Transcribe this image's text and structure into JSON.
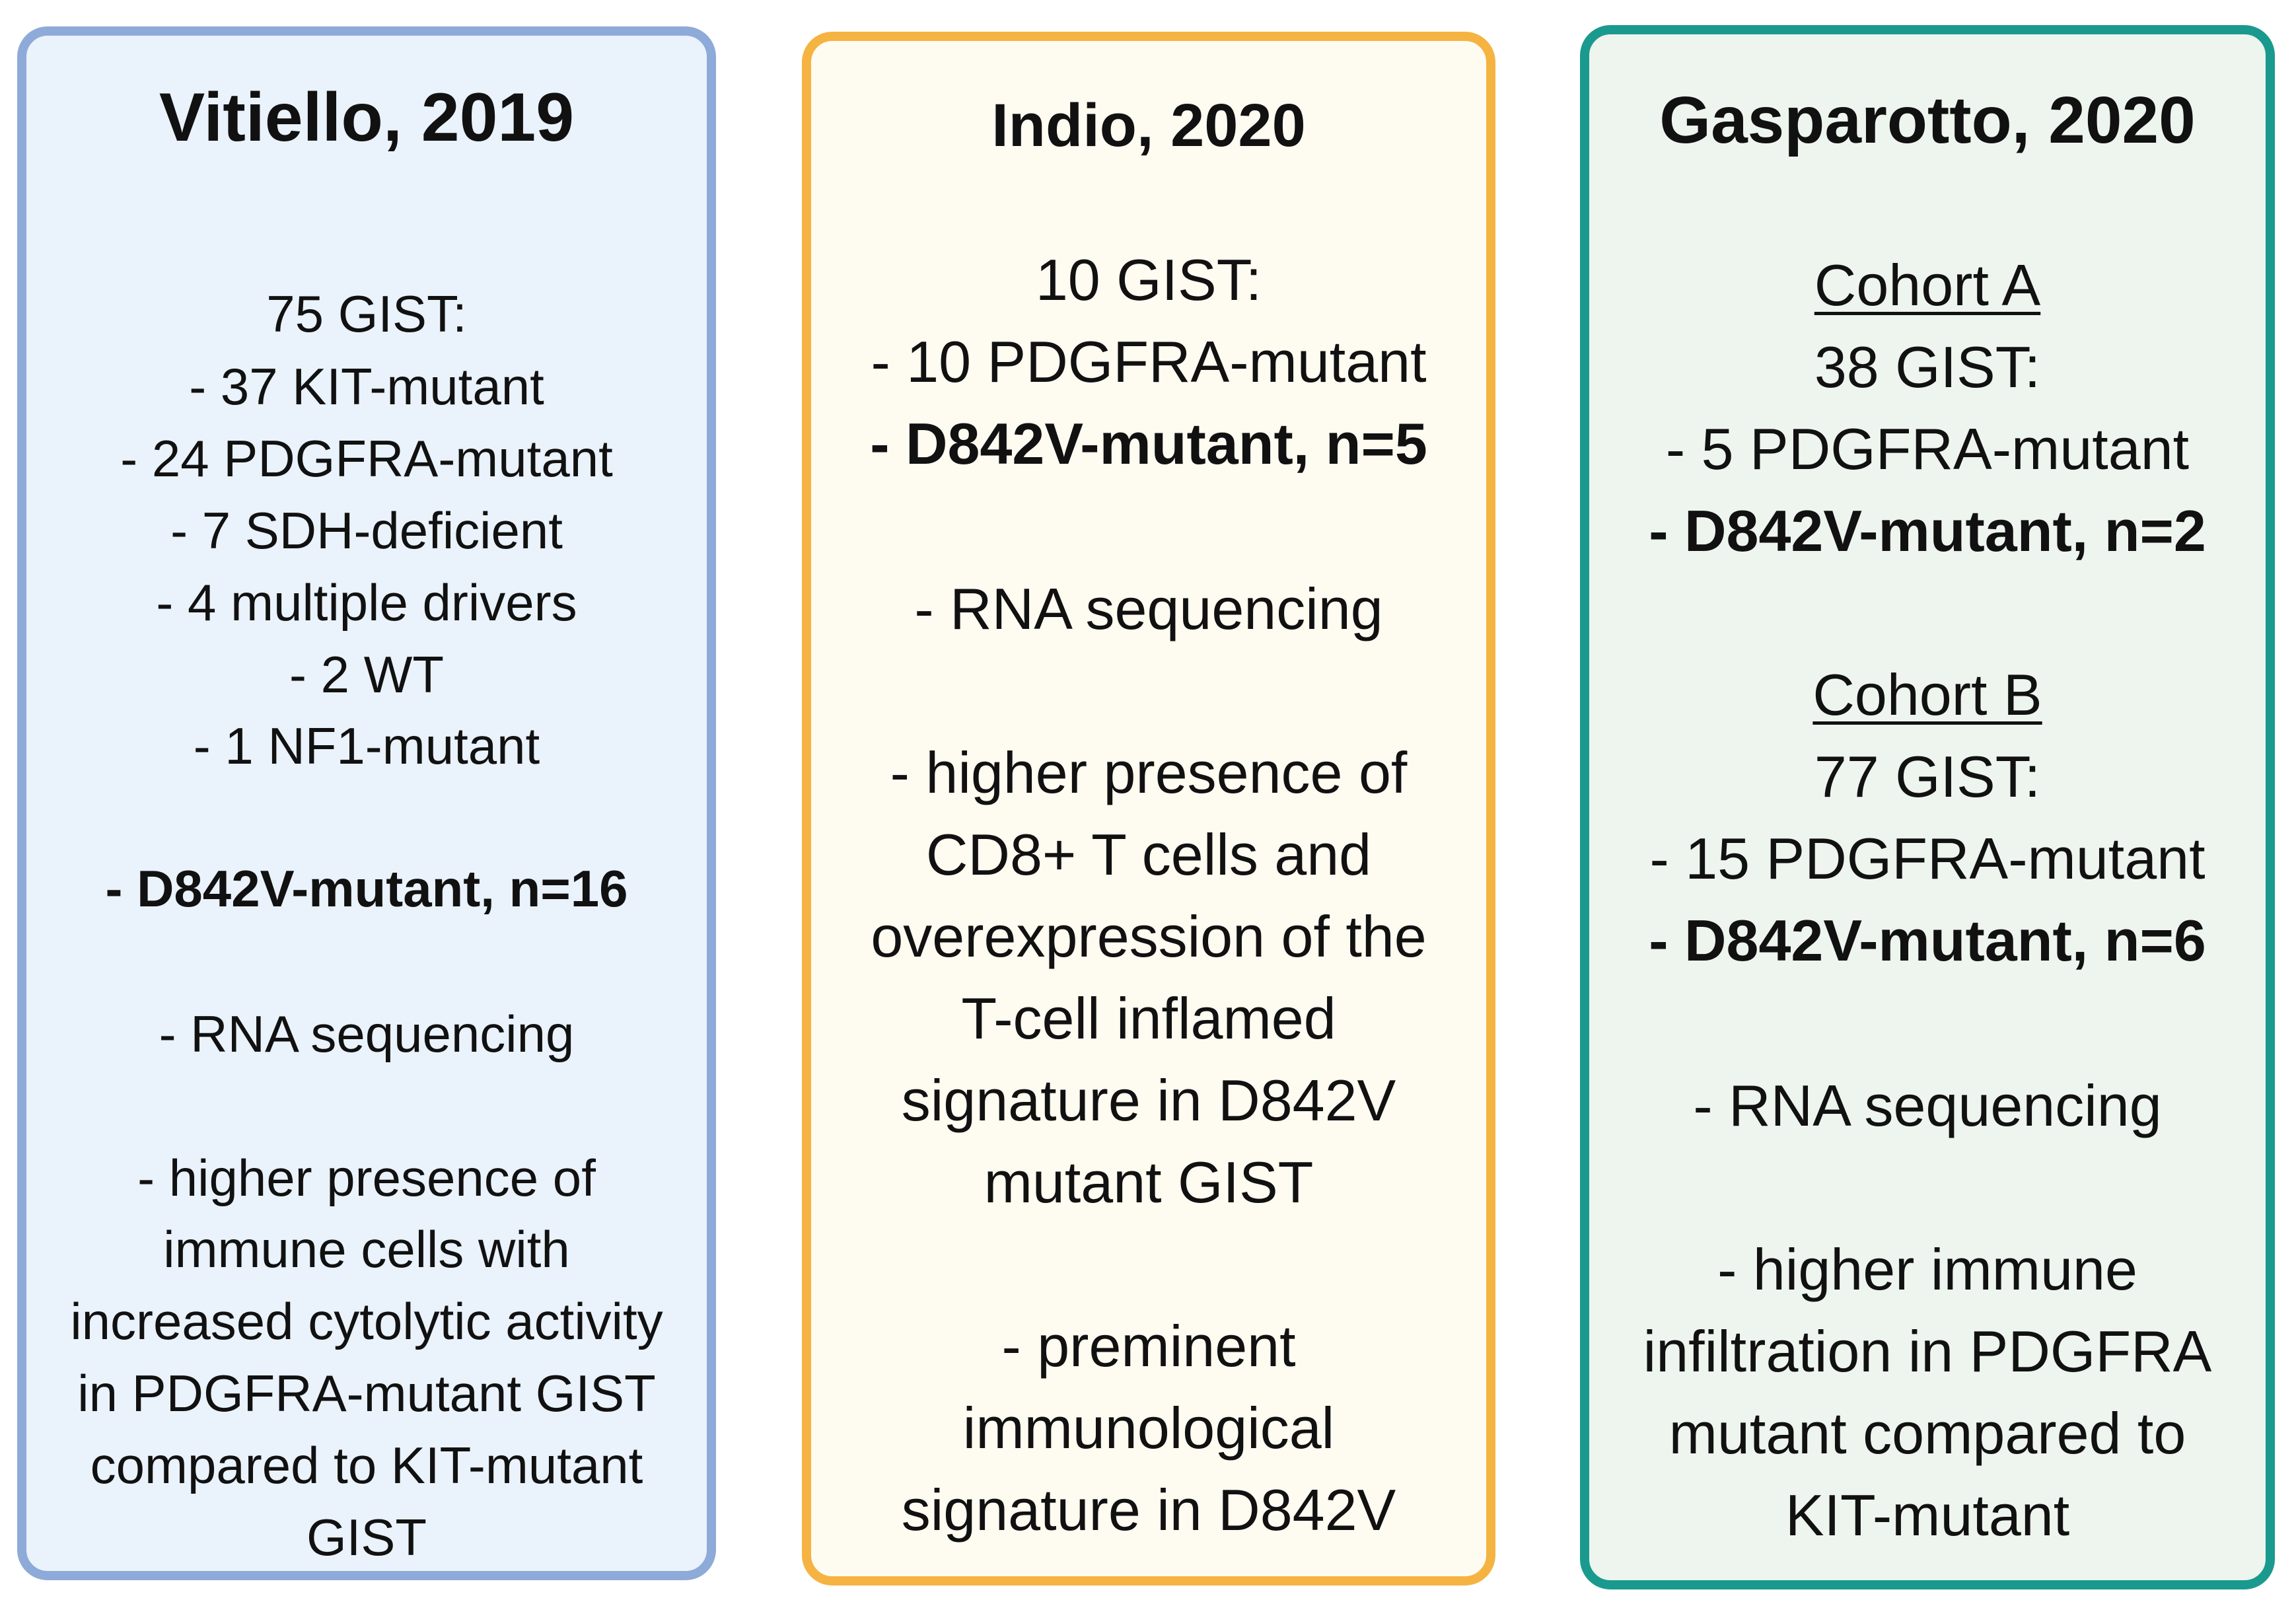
{
  "panels": [
    {
      "title": "Vitiello, 2019",
      "border_color": "#8eaad8",
      "background": "#eaf2fb",
      "lines": [
        "75 GIST:",
        "- 37 KIT-mutant",
        "- 24 PDGFRA-mutant",
        "- 7 SDH-deficient",
        "- 4 multiple drivers",
        "- 2 WT",
        "- 1 NF1-mutant",
        "- D842V-mutant, n=16",
        "- RNA sequencing",
        "- higher presence of",
        "immune cells with",
        "increased cytolytic activity",
        "in PDGFRA-mutant GIST",
        "compared to KIT-mutant",
        "GIST"
      ]
    },
    {
      "title": "Indio, 2020",
      "border_color": "#f5b342",
      "background": "#fefbf1",
      "lines": [
        "10 GIST:",
        "- 10 PDGFRA-mutant",
        "- D842V-mutant, n=5",
        "- RNA sequencing",
        "- higher presence of",
        "CD8+ T cells and",
        "overexpression of the",
        "T-cell inflamed",
        "signature in D842V",
        "mutant GIST",
        "- preminent",
        "immunological",
        "signature in D842V"
      ]
    },
    {
      "title": "Gasparotto, 2020",
      "border_color": "#1a9a8e",
      "background": "#eef4ee",
      "lines": [
        "Cohort A",
        "38 GIST:",
        "- 5 PDGFRA-mutant",
        "- D842V-mutant, n=2",
        "Cohort B",
        "77 GIST:",
        "- 15 PDGFRA-mutant",
        "- D842V-mutant, n=6",
        "- RNA sequencing",
        "- higher immune",
        "infiltration in PDGFRA",
        "mutant compared to",
        "KIT-mutant"
      ]
    }
  ]
}
